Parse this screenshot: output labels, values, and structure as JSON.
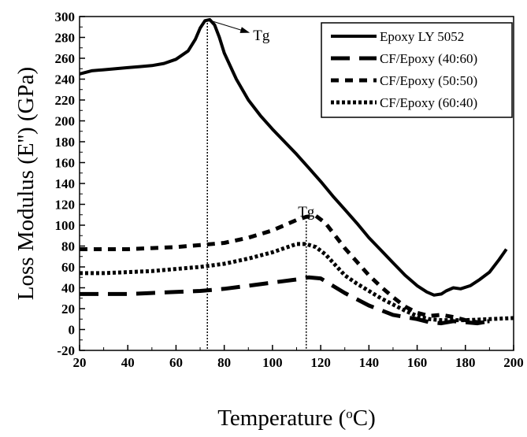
{
  "chart_data": {
    "type": "line",
    "title": "",
    "xlabel": "Temperature (",
    "xlabel_sup": "o",
    "xlabel_end": "C)",
    "ylabel": "Loss Modulus (E'') (GPa)",
    "xlim": [
      20,
      200
    ],
    "ylim": [
      -20,
      300
    ],
    "x_ticks": [
      20,
      40,
      60,
      80,
      100,
      120,
      140,
      160,
      180,
      200
    ],
    "y_ticks": [
      -20,
      0,
      20,
      40,
      60,
      80,
      100,
      120,
      140,
      160,
      180,
      200,
      220,
      240,
      260,
      280,
      300
    ],
    "legend_position": "top-right",
    "grid": false,
    "series": [
      {
        "name": "Epoxy LY 5052",
        "style": "solid",
        "color": "#000000",
        "points": [
          [
            20,
            245
          ],
          [
            25,
            248
          ],
          [
            30,
            249
          ],
          [
            35,
            250
          ],
          [
            40,
            251
          ],
          [
            45,
            252
          ],
          [
            50,
            253
          ],
          [
            55,
            255
          ],
          [
            60,
            259
          ],
          [
            65,
            267
          ],
          [
            68,
            278
          ],
          [
            70,
            289
          ],
          [
            72,
            296
          ],
          [
            74,
            297
          ],
          [
            76,
            292
          ],
          [
            78,
            280
          ],
          [
            80,
            265
          ],
          [
            85,
            240
          ],
          [
            90,
            220
          ],
          [
            95,
            205
          ],
          [
            100,
            192
          ],
          [
            105,
            180
          ],
          [
            110,
            168
          ],
          [
            115,
            155
          ],
          [
            120,
            142
          ],
          [
            125,
            128
          ],
          [
            130,
            115
          ],
          [
            135,
            102
          ],
          [
            140,
            88
          ],
          [
            145,
            76
          ],
          [
            150,
            64
          ],
          [
            155,
            52
          ],
          [
            160,
            42
          ],
          [
            164,
            36
          ],
          [
            167,
            33
          ],
          [
            170,
            34
          ],
          [
            172,
            37
          ],
          [
            175,
            40
          ],
          [
            178,
            39
          ],
          [
            182,
            42
          ],
          [
            186,
            48
          ],
          [
            190,
            55
          ],
          [
            194,
            67
          ],
          [
            197,
            77
          ]
        ]
      },
      {
        "name": "CF/Epoxy (40:60)",
        "style": "long-dash",
        "color": "#000000",
        "points": [
          [
            20,
            34
          ],
          [
            30,
            34
          ],
          [
            40,
            34
          ],
          [
            50,
            35
          ],
          [
            60,
            36
          ],
          [
            70,
            37
          ],
          [
            80,
            39
          ],
          [
            90,
            42
          ],
          [
            100,
            45
          ],
          [
            110,
            48
          ],
          [
            115,
            50
          ],
          [
            120,
            49
          ],
          [
            125,
            42
          ],
          [
            130,
            35
          ],
          [
            140,
            23
          ],
          [
            150,
            14
          ],
          [
            160,
            10
          ],
          [
            165,
            7
          ],
          [
            170,
            6
          ],
          [
            175,
            8
          ],
          [
            180,
            7
          ],
          [
            185,
            6
          ],
          [
            190,
            8
          ]
        ]
      },
      {
        "name": "CF/Epoxy (50:50)",
        "style": "dash",
        "color": "#000000",
        "points": [
          [
            20,
            77
          ],
          [
            30,
            77
          ],
          [
            40,
            77
          ],
          [
            50,
            78
          ],
          [
            60,
            79
          ],
          [
            70,
            81
          ],
          [
            80,
            83
          ],
          [
            90,
            88
          ],
          [
            100,
            95
          ],
          [
            105,
            100
          ],
          [
            110,
            105
          ],
          [
            114,
            108
          ],
          [
            118,
            109
          ],
          [
            122,
            102
          ],
          [
            126,
            90
          ],
          [
            130,
            78
          ],
          [
            135,
            65
          ],
          [
            140,
            52
          ],
          [
            145,
            41
          ],
          [
            150,
            31
          ],
          [
            155,
            22
          ],
          [
            160,
            16
          ],
          [
            165,
            13
          ],
          [
            170,
            14
          ],
          [
            175,
            12
          ],
          [
            180,
            9
          ],
          [
            185,
            7
          ],
          [
            190,
            8
          ]
        ]
      },
      {
        "name": "CF/Epoxy (60:40)",
        "style": "dot",
        "color": "#000000",
        "points": [
          [
            20,
            54
          ],
          [
            30,
            54
          ],
          [
            40,
            55
          ],
          [
            50,
            56
          ],
          [
            60,
            58
          ],
          [
            70,
            60
          ],
          [
            80,
            63
          ],
          [
            90,
            68
          ],
          [
            100,
            74
          ],
          [
            105,
            78
          ],
          [
            110,
            82
          ],
          [
            114,
            82
          ],
          [
            118,
            79
          ],
          [
            122,
            72
          ],
          [
            126,
            62
          ],
          [
            130,
            52
          ],
          [
            135,
            44
          ],
          [
            140,
            37
          ],
          [
            145,
            30
          ],
          [
            150,
            24
          ],
          [
            155,
            18
          ],
          [
            160,
            13
          ],
          [
            165,
            10
          ],
          [
            170,
            9
          ],
          [
            180,
            9
          ],
          [
            190,
            10
          ],
          [
            200,
            11
          ]
        ]
      }
    ],
    "annotations": [
      {
        "text": "Tg",
        "x": 73,
        "type": "vline-arrow"
      },
      {
        "text": "Tg",
        "x": 114,
        "type": "vline-label"
      }
    ]
  }
}
